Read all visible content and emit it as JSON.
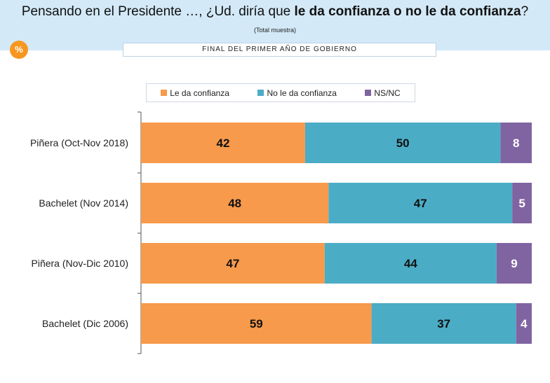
{
  "header": {
    "title_prefix": "Pensando en el Presidente …, ¿Ud. diría que ",
    "title_bold": "le da confianza o no le da confianza",
    "title_suffix": "?",
    "subtitle": "(Total muestra)",
    "badge": "%",
    "period": "FINAL DEL PRIMER AÑO DE GOBIERNO"
  },
  "colors": {
    "header_bg": "#d3e9f7",
    "confianza": "#f79a4b",
    "no_confianza": "#4bacc6",
    "nsnc": "#8064a2",
    "badge": "#f7971f"
  },
  "chart_data": {
    "type": "bar",
    "orientation": "horizontal",
    "stacked": true,
    "title": "Pensando en el Presidente …, ¿Ud. diría que le da confianza o no le da confianza?",
    "subtitle": "(Total muestra)",
    "unit": "%",
    "categories": [
      "Piñera (Oct-Nov 2018)",
      "Bachelet (Nov 2014)",
      "Piñera (Nov-Dic 2010)",
      "Bachelet (Dic 2006)"
    ],
    "series": [
      {
        "name": "Le da confianza",
        "values": [
          42,
          48,
          47,
          59
        ]
      },
      {
        "name": "No le da confianza",
        "values": [
          50,
          47,
          44,
          37
        ]
      },
      {
        "name": "NS/NC",
        "values": [
          8,
          5,
          9,
          4
        ]
      }
    ],
    "xlim": [
      0,
      100
    ],
    "legend_position": "top-center",
    "grid": false
  }
}
